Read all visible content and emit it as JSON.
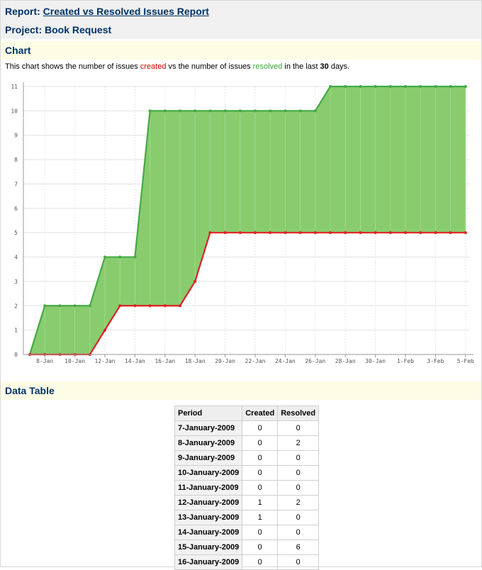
{
  "report": {
    "prefix": "Report:",
    "title": "Created vs Resolved Issues Report"
  },
  "project": {
    "prefix": "Project:",
    "name": "Book Request"
  },
  "chart_section": {
    "heading": "Chart",
    "desc_pre": "This chart shows the number of issues ",
    "created_word": "created",
    "desc_mid": " vs the number of issues ",
    "resolved_word": "resolved",
    "desc_mid2": " in the last ",
    "days": "30",
    "desc_post": " days."
  },
  "table_section": {
    "heading": "Data Table"
  },
  "table": {
    "headers": [
      "Period",
      "Created",
      "Resolved"
    ],
    "rows": [
      [
        "7-January-2009",
        "0",
        "0"
      ],
      [
        "8-January-2009",
        "0",
        "2"
      ],
      [
        "9-January-2009",
        "0",
        "0"
      ],
      [
        "10-January-2009",
        "0",
        "0"
      ],
      [
        "11-January-2009",
        "0",
        "0"
      ],
      [
        "12-January-2009",
        "1",
        "2"
      ],
      [
        "13-January-2009",
        "1",
        "0"
      ],
      [
        "14-January-2009",
        "0",
        "0"
      ],
      [
        "15-January-2009",
        "0",
        "6"
      ],
      [
        "16-January-2009",
        "0",
        "0"
      ]
    ]
  },
  "chart_data": {
    "type": "area",
    "title": "",
    "xlabel": "",
    "ylabel": "",
    "ylim": [
      0,
      11
    ],
    "yticks": [
      0,
      1,
      2,
      3,
      4,
      5,
      6,
      7,
      8,
      9,
      10,
      11
    ],
    "xtick_labels": [
      "8-Jan",
      "10-Jan",
      "12-Jan",
      "14-Jan",
      "16-Jan",
      "18-Jan",
      "20-Jan",
      "22-Jan",
      "24-Jan",
      "26-Jan",
      "28-Jan",
      "30-Jan",
      "1-Feb",
      "3-Feb",
      "5-Feb"
    ],
    "grid": true,
    "colors": {
      "created": "#dd2222",
      "resolved": "#44aa44",
      "fill": "#88cc6e"
    },
    "x": [
      "7-Jan",
      "8-Jan",
      "9-Jan",
      "10-Jan",
      "11-Jan",
      "12-Jan",
      "13-Jan",
      "14-Jan",
      "15-Jan",
      "16-Jan",
      "17-Jan",
      "18-Jan",
      "19-Jan",
      "20-Jan",
      "21-Jan",
      "22-Jan",
      "23-Jan",
      "24-Jan",
      "25-Jan",
      "26-Jan",
      "27-Jan",
      "28-Jan",
      "29-Jan",
      "30-Jan",
      "31-Jan",
      "1-Feb",
      "2-Feb",
      "3-Feb",
      "4-Feb",
      "5-Feb"
    ],
    "series": [
      {
        "key": "resolved",
        "values": [
          0,
          2,
          2,
          2,
          2,
          4,
          4,
          4,
          10,
          10,
          10,
          10,
          10,
          10,
          10,
          10,
          10,
          10,
          10,
          10,
          11,
          11,
          11,
          11,
          11,
          11,
          11,
          11,
          11,
          11
        ]
      },
      {
        "key": "created",
        "values": [
          0,
          0,
          0,
          0,
          0,
          1,
          2,
          2,
          2,
          2,
          2,
          3,
          5,
          5,
          5,
          5,
          5,
          5,
          5,
          5,
          5,
          5,
          5,
          5,
          5,
          5,
          5,
          5,
          5,
          5
        ]
      }
    ]
  }
}
